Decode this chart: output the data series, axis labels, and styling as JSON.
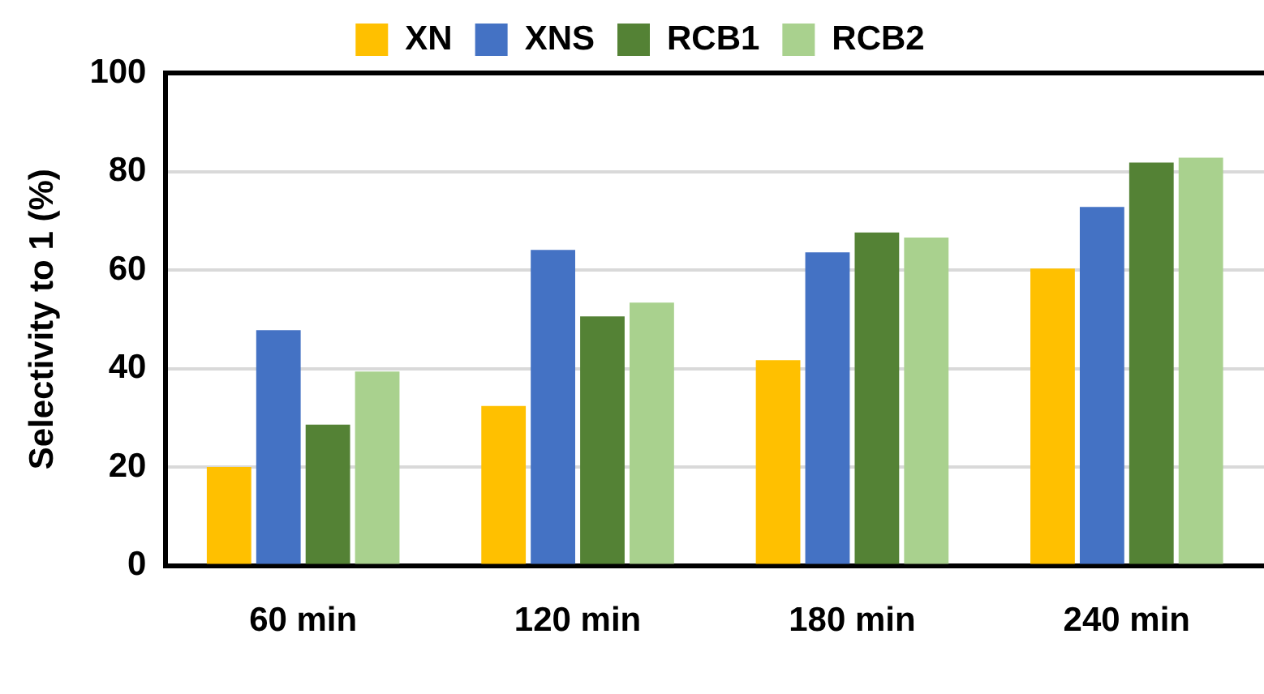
{
  "chart_data": {
    "type": "bar",
    "ylabel": "Selectivity to 1 (%)",
    "categories": [
      "60 min",
      "120 min",
      "180 min",
      "240 min"
    ],
    "series": [
      {
        "name": "XN",
        "color": "#ffc000",
        "values": [
          20,
          32.4,
          41.7,
          60.3
        ]
      },
      {
        "name": "XNS",
        "color": "#4472c4",
        "values": [
          47.8,
          64.1,
          63.6,
          72.8
        ]
      },
      {
        "name": "RCB1",
        "color": "#548235",
        "values": [
          28.6,
          50.6,
          67.6,
          81.8
        ]
      },
      {
        "name": "RCB2",
        "color": "#a9d18e",
        "values": [
          39.4,
          53.4,
          66.6,
          82.8
        ]
      }
    ],
    "ylim": [
      0,
      100
    ],
    "yticks": [
      0,
      20,
      40,
      60,
      80,
      100
    ],
    "grid": "y",
    "legend": "top"
  }
}
